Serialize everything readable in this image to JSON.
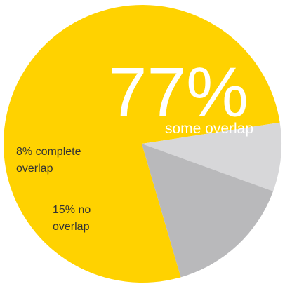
{
  "chart_data": {
    "type": "pie",
    "slices": [
      {
        "label": "some overlap",
        "value": 77,
        "display": "77%",
        "color": "#FFD200"
      },
      {
        "label": "no overlap",
        "value": 15,
        "display": "15% no",
        "display_line2": "overlap",
        "color": "#B9B9BB"
      },
      {
        "label": "complete overlap",
        "value": 8,
        "display": "8% complete",
        "display_line2": "overlap",
        "color": "#D7D7D9"
      }
    ]
  }
}
